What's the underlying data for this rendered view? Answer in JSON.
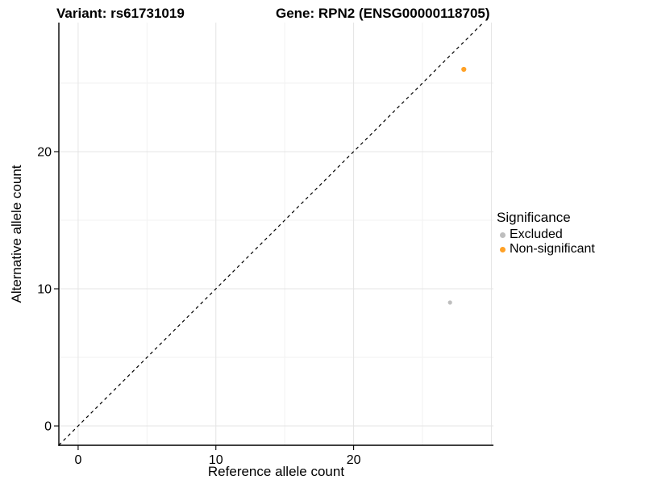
{
  "figure": {
    "title_left": "Variant: rs61731019",
    "title_right": "Gene: RPN2 (ENSG00000118705)"
  },
  "chart_data": {
    "type": "scatter",
    "title_left": "Variant: rs61731019",
    "title_right": "Gene: RPN2 (ENSG00000118705)",
    "xlabel": "Reference allele count",
    "ylabel": "Alternative allele count",
    "xlim": [
      -1.4,
      30.15
    ],
    "ylim": [
      -1.41,
      29.41
    ],
    "x_major_ticks": [
      0,
      10,
      20
    ],
    "y_major_ticks": [
      0,
      10,
      20
    ],
    "x_grid_major": [
      0,
      10,
      20,
      30
    ],
    "x_grid_minor": [
      5,
      15,
      25
    ],
    "y_grid_major": [
      0,
      10,
      20
    ],
    "y_grid_minor": [
      5,
      15,
      25
    ],
    "grid_major_color": "#e4e4e4",
    "grid_minor_color": "#f2f2f2",
    "axis_line_color": "#000000",
    "identity_line": {
      "slope": 1,
      "intercept": 0,
      "color": "#000000",
      "dash": "4 4",
      "width": 1.2
    },
    "series": [
      {
        "name": "Excluded",
        "color": "#bebebe",
        "radius": 2.6,
        "points": [
          {
            "x": 27,
            "y": 9
          }
        ]
      },
      {
        "name": "Non-significant",
        "color": "#ffa126",
        "radius": 3.1,
        "points": [
          {
            "x": 28,
            "y": 26
          }
        ]
      }
    ],
    "legend": {
      "title": "Significance",
      "position": "right",
      "items": [
        {
          "label": "Excluded",
          "color": "#bebebe"
        },
        {
          "label": "Non-significant",
          "color": "#ffa126"
        }
      ]
    }
  }
}
